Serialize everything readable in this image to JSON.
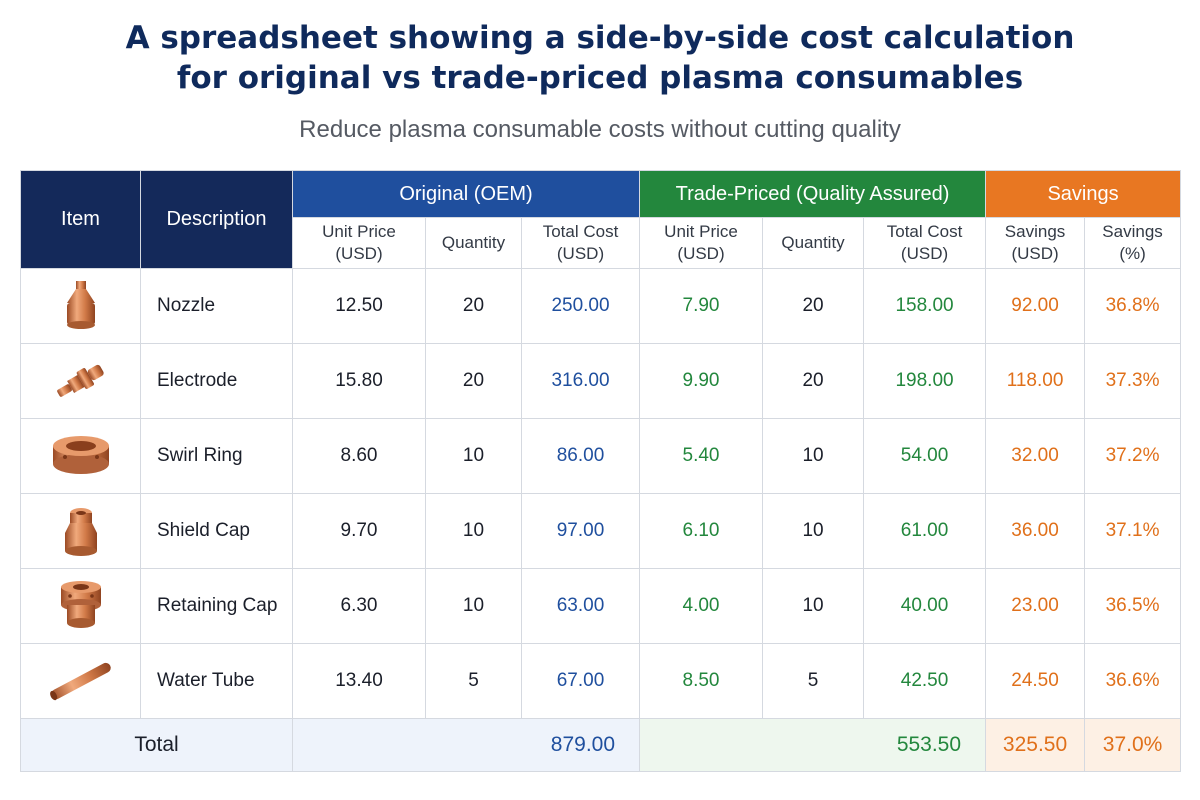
{
  "title_line1": "A spreadsheet showing a side-by-side cost calculation",
  "title_line2": "for original vs trade-priced plasma consumables",
  "subtitle": "Reduce plasma consumable costs without cutting quality",
  "headers": {
    "item": "Item",
    "description": "Description",
    "group_oem": "Original (OEM)",
    "group_trade": "Trade-Priced (Quality Assured)",
    "group_savings": "Savings",
    "unit_price_l1": "Unit Price",
    "unit_price_l2": "(USD)",
    "quantity": "Quantity",
    "total_cost_l1": "Total Cost",
    "total_cost_l2": "(USD)",
    "savings_usd_l1": "Savings",
    "savings_usd_l2": "(USD)",
    "savings_pct_l1": "Savings",
    "savings_pct_l2": "(%)"
  },
  "rows": [
    {
      "icon": "nozzle-icon",
      "description": "Nozzle",
      "oem_unit": "12.50",
      "oem_qty": "20",
      "oem_total": "250.00",
      "trade_unit": "7.90",
      "trade_qty": "20",
      "trade_total": "158.00",
      "savings_usd": "92.00",
      "savings_pct": "36.8%"
    },
    {
      "icon": "electrode-icon",
      "description": "Electrode",
      "oem_unit": "15.80",
      "oem_qty": "20",
      "oem_total": "316.00",
      "trade_unit": "9.90",
      "trade_qty": "20",
      "trade_total": "198.00",
      "savings_usd": "118.00",
      "savings_pct": "37.3%"
    },
    {
      "icon": "swirl-ring-icon",
      "description": "Swirl Ring",
      "oem_unit": "8.60",
      "oem_qty": "10",
      "oem_total": "86.00",
      "trade_unit": "5.40",
      "trade_qty": "10",
      "trade_total": "54.00",
      "savings_usd": "32.00",
      "savings_pct": "37.2%"
    },
    {
      "icon": "shield-cap-icon",
      "description": "Shield Cap",
      "oem_unit": "9.70",
      "oem_qty": "10",
      "oem_total": "97.00",
      "trade_unit": "6.10",
      "trade_qty": "10",
      "trade_total": "61.00",
      "savings_usd": "36.00",
      "savings_pct": "37.1%"
    },
    {
      "icon": "retaining-cap-icon",
      "description": "Retaining Cap",
      "oem_unit": "6.30",
      "oem_qty": "10",
      "oem_total": "63.00",
      "trade_unit": "4.00",
      "trade_qty": "10",
      "trade_total": "40.00",
      "savings_usd": "23.00",
      "savings_pct": "36.5%"
    },
    {
      "icon": "water-tube-icon",
      "description": "Water Tube",
      "oem_unit": "13.40",
      "oem_qty": "5",
      "oem_total": "67.00",
      "trade_unit": "8.50",
      "trade_qty": "5",
      "trade_total": "42.50",
      "savings_usd": "24.50",
      "savings_pct": "36.6%"
    }
  ],
  "totals": {
    "label": "Total",
    "oem_total": "879.00",
    "trade_total": "553.50",
    "savings_usd": "325.50",
    "savings_pct": "37.0%"
  },
  "colors": {
    "navy": "#14295a",
    "oem_blue": "#1f4f9e",
    "trade_green": "#23873d",
    "savings_orange": "#e87722",
    "copper": "#c8703f"
  }
}
